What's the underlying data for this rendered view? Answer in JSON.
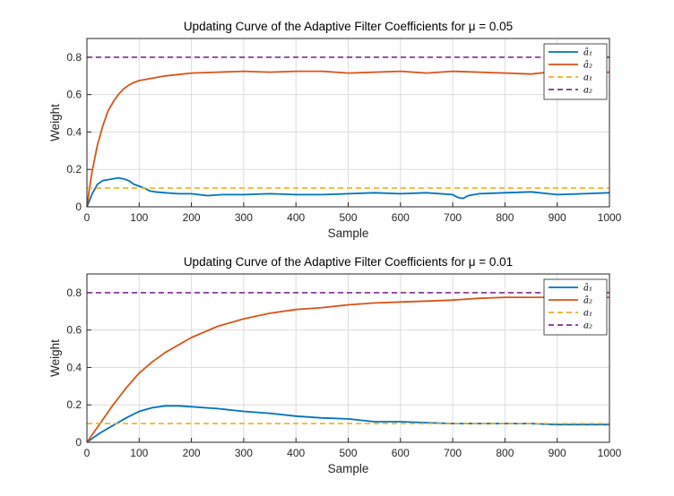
{
  "chart_data": [
    {
      "type": "line",
      "title": "Updating Curve of the Adaptive Filter Coefficients for μ = 0.05",
      "xlabel": "Sample",
      "ylabel": "Weight",
      "xlim": [
        0,
        1000
      ],
      "ylim": [
        0,
        0.9
      ],
      "xticks": [
        "0",
        "100",
        "200",
        "300",
        "400",
        "500",
        "600",
        "700",
        "800",
        "900",
        "1000"
      ],
      "yticks": [
        "0",
        "0.2",
        "0.4",
        "0.6",
        "0.8"
      ],
      "grid": true,
      "legend_position": "top-right",
      "series": [
        {
          "name": "â₁",
          "color": "#0072BD",
          "style": "solid",
          "x": [
            0,
            10,
            20,
            30,
            40,
            50,
            60,
            70,
            80,
            90,
            100,
            110,
            120,
            130,
            150,
            175,
            200,
            230,
            260,
            300,
            350,
            400,
            450,
            500,
            550,
            600,
            650,
            700,
            710,
            720,
            730,
            750,
            800,
            850,
            900,
            950,
            1000
          ],
          "y": [
            0,
            0.07,
            0.12,
            0.14,
            0.145,
            0.15,
            0.155,
            0.15,
            0.14,
            0.12,
            0.11,
            0.1,
            0.085,
            0.08,
            0.075,
            0.07,
            0.07,
            0.06,
            0.065,
            0.065,
            0.07,
            0.065,
            0.065,
            0.07,
            0.075,
            0.07,
            0.075,
            0.065,
            0.05,
            0.045,
            0.06,
            0.07,
            0.075,
            0.08,
            0.065,
            0.07,
            0.075
          ]
        },
        {
          "name": "â₂",
          "color": "#D95319",
          "style": "solid",
          "x": [
            0,
            5,
            10,
            20,
            30,
            40,
            50,
            60,
            70,
            80,
            90,
            100,
            120,
            150,
            200,
            250,
            300,
            350,
            400,
            450,
            500,
            550,
            600,
            650,
            700,
            750,
            800,
            850,
            900,
            950,
            1000
          ],
          "y": [
            0,
            0.1,
            0.19,
            0.33,
            0.43,
            0.51,
            0.56,
            0.6,
            0.63,
            0.65,
            0.665,
            0.675,
            0.685,
            0.7,
            0.715,
            0.72,
            0.725,
            0.72,
            0.725,
            0.725,
            0.715,
            0.72,
            0.725,
            0.715,
            0.725,
            0.72,
            0.715,
            0.71,
            0.725,
            0.715,
            0.72
          ]
        },
        {
          "name": "a₁",
          "color": "#EDB120",
          "style": "dashed",
          "x": [
            0,
            1000
          ],
          "y": [
            0.1,
            0.1
          ]
        },
        {
          "name": "a₂",
          "color": "#7E2F8E",
          "style": "dashed",
          "x": [
            0,
            1000
          ],
          "y": [
            0.8,
            0.8
          ]
        }
      ]
    },
    {
      "type": "line",
      "title": "Updating Curve of the Adaptive Filter Coefficients for μ = 0.01",
      "xlabel": "Sample",
      "ylabel": "Weight",
      "xlim": [
        0,
        1000
      ],
      "ylim": [
        0,
        0.9
      ],
      "xticks": [
        "0",
        "100",
        "200",
        "300",
        "400",
        "500",
        "600",
        "700",
        "800",
        "900",
        "1000"
      ],
      "yticks": [
        "0",
        "0.2",
        "0.4",
        "0.6",
        "0.8"
      ],
      "grid": true,
      "legend_position": "top-right",
      "series": [
        {
          "name": "â₁",
          "color": "#0072BD",
          "style": "solid",
          "x": [
            0,
            10,
            25,
            50,
            75,
            100,
            125,
            150,
            175,
            200,
            250,
            300,
            350,
            400,
            450,
            500,
            550,
            600,
            650,
            700,
            750,
            800,
            850,
            900,
            950,
            1000
          ],
          "y": [
            0,
            0.02,
            0.05,
            0.09,
            0.13,
            0.165,
            0.185,
            0.195,
            0.195,
            0.19,
            0.18,
            0.165,
            0.155,
            0.14,
            0.13,
            0.125,
            0.11,
            0.11,
            0.105,
            0.1,
            0.1,
            0.1,
            0.1,
            0.095,
            0.095,
            0.095
          ]
        },
        {
          "name": "â₂",
          "color": "#D95319",
          "style": "solid",
          "x": [
            0,
            10,
            25,
            50,
            75,
            100,
            125,
            150,
            200,
            250,
            300,
            350,
            400,
            450,
            500,
            550,
            600,
            650,
            700,
            750,
            800,
            850,
            900,
            950,
            1000
          ],
          "y": [
            0,
            0.04,
            0.1,
            0.2,
            0.29,
            0.37,
            0.43,
            0.48,
            0.56,
            0.62,
            0.66,
            0.69,
            0.71,
            0.72,
            0.735,
            0.745,
            0.75,
            0.755,
            0.76,
            0.77,
            0.775,
            0.775,
            0.775,
            0.775,
            0.775
          ]
        },
        {
          "name": "a₁",
          "color": "#EDB120",
          "style": "dashed",
          "x": [
            0,
            1000
          ],
          "y": [
            0.1,
            0.1
          ]
        },
        {
          "name": "a₂",
          "color": "#7E2F8E",
          "style": "dashed",
          "x": [
            0,
            1000
          ],
          "y": [
            0.8,
            0.8
          ]
        }
      ]
    }
  ]
}
